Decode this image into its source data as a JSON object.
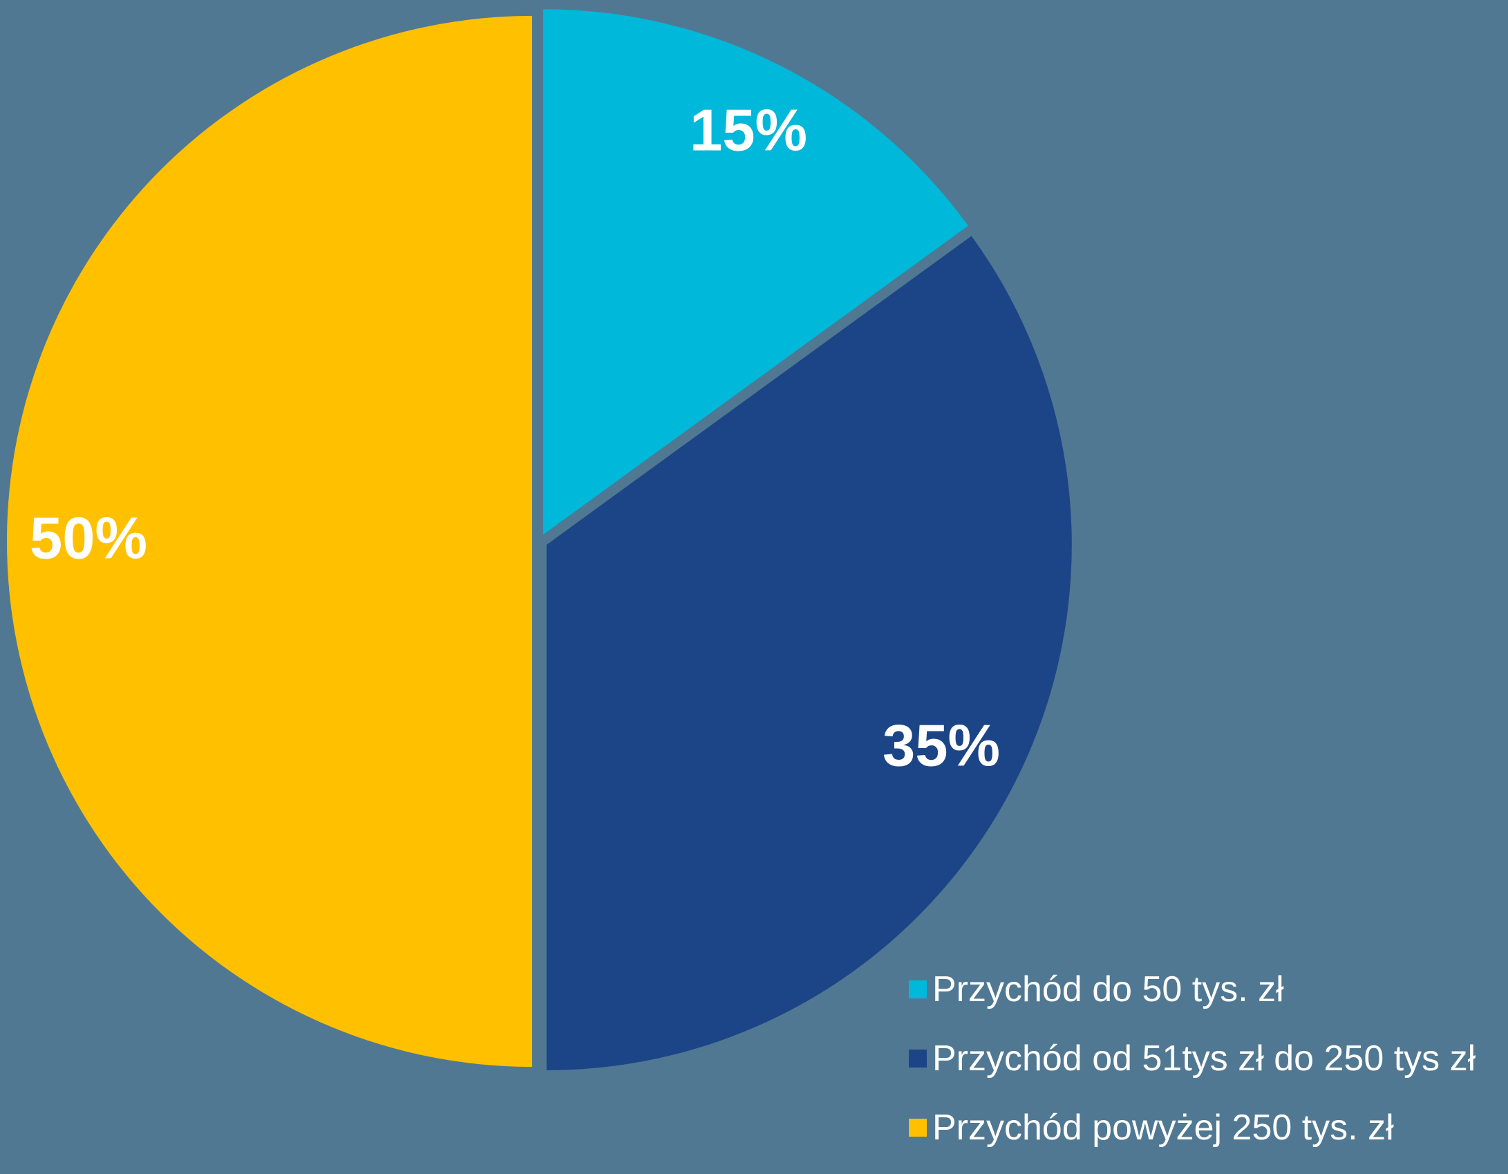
{
  "chart_data": {
    "type": "pie",
    "title": "",
    "slices": [
      {
        "label": "Przychód do 50 tys. zł",
        "value": 15,
        "display": "15%",
        "color": "#00B8D9"
      },
      {
        "label": "Przychód od 51tys zł do 250 tys zł",
        "value": 35,
        "display": "35%",
        "color": "#1C4587"
      },
      {
        "label": "Przychód powyżej 250 tys. zł",
        "value": 50,
        "display": "50%",
        "color": "#FFC000"
      }
    ],
    "start_angle": "12 o'clock, clockwise",
    "exploded": true,
    "legend_position": "bottom-right",
    "background_color": "#517892",
    "label_color": "#FFFFFF"
  }
}
